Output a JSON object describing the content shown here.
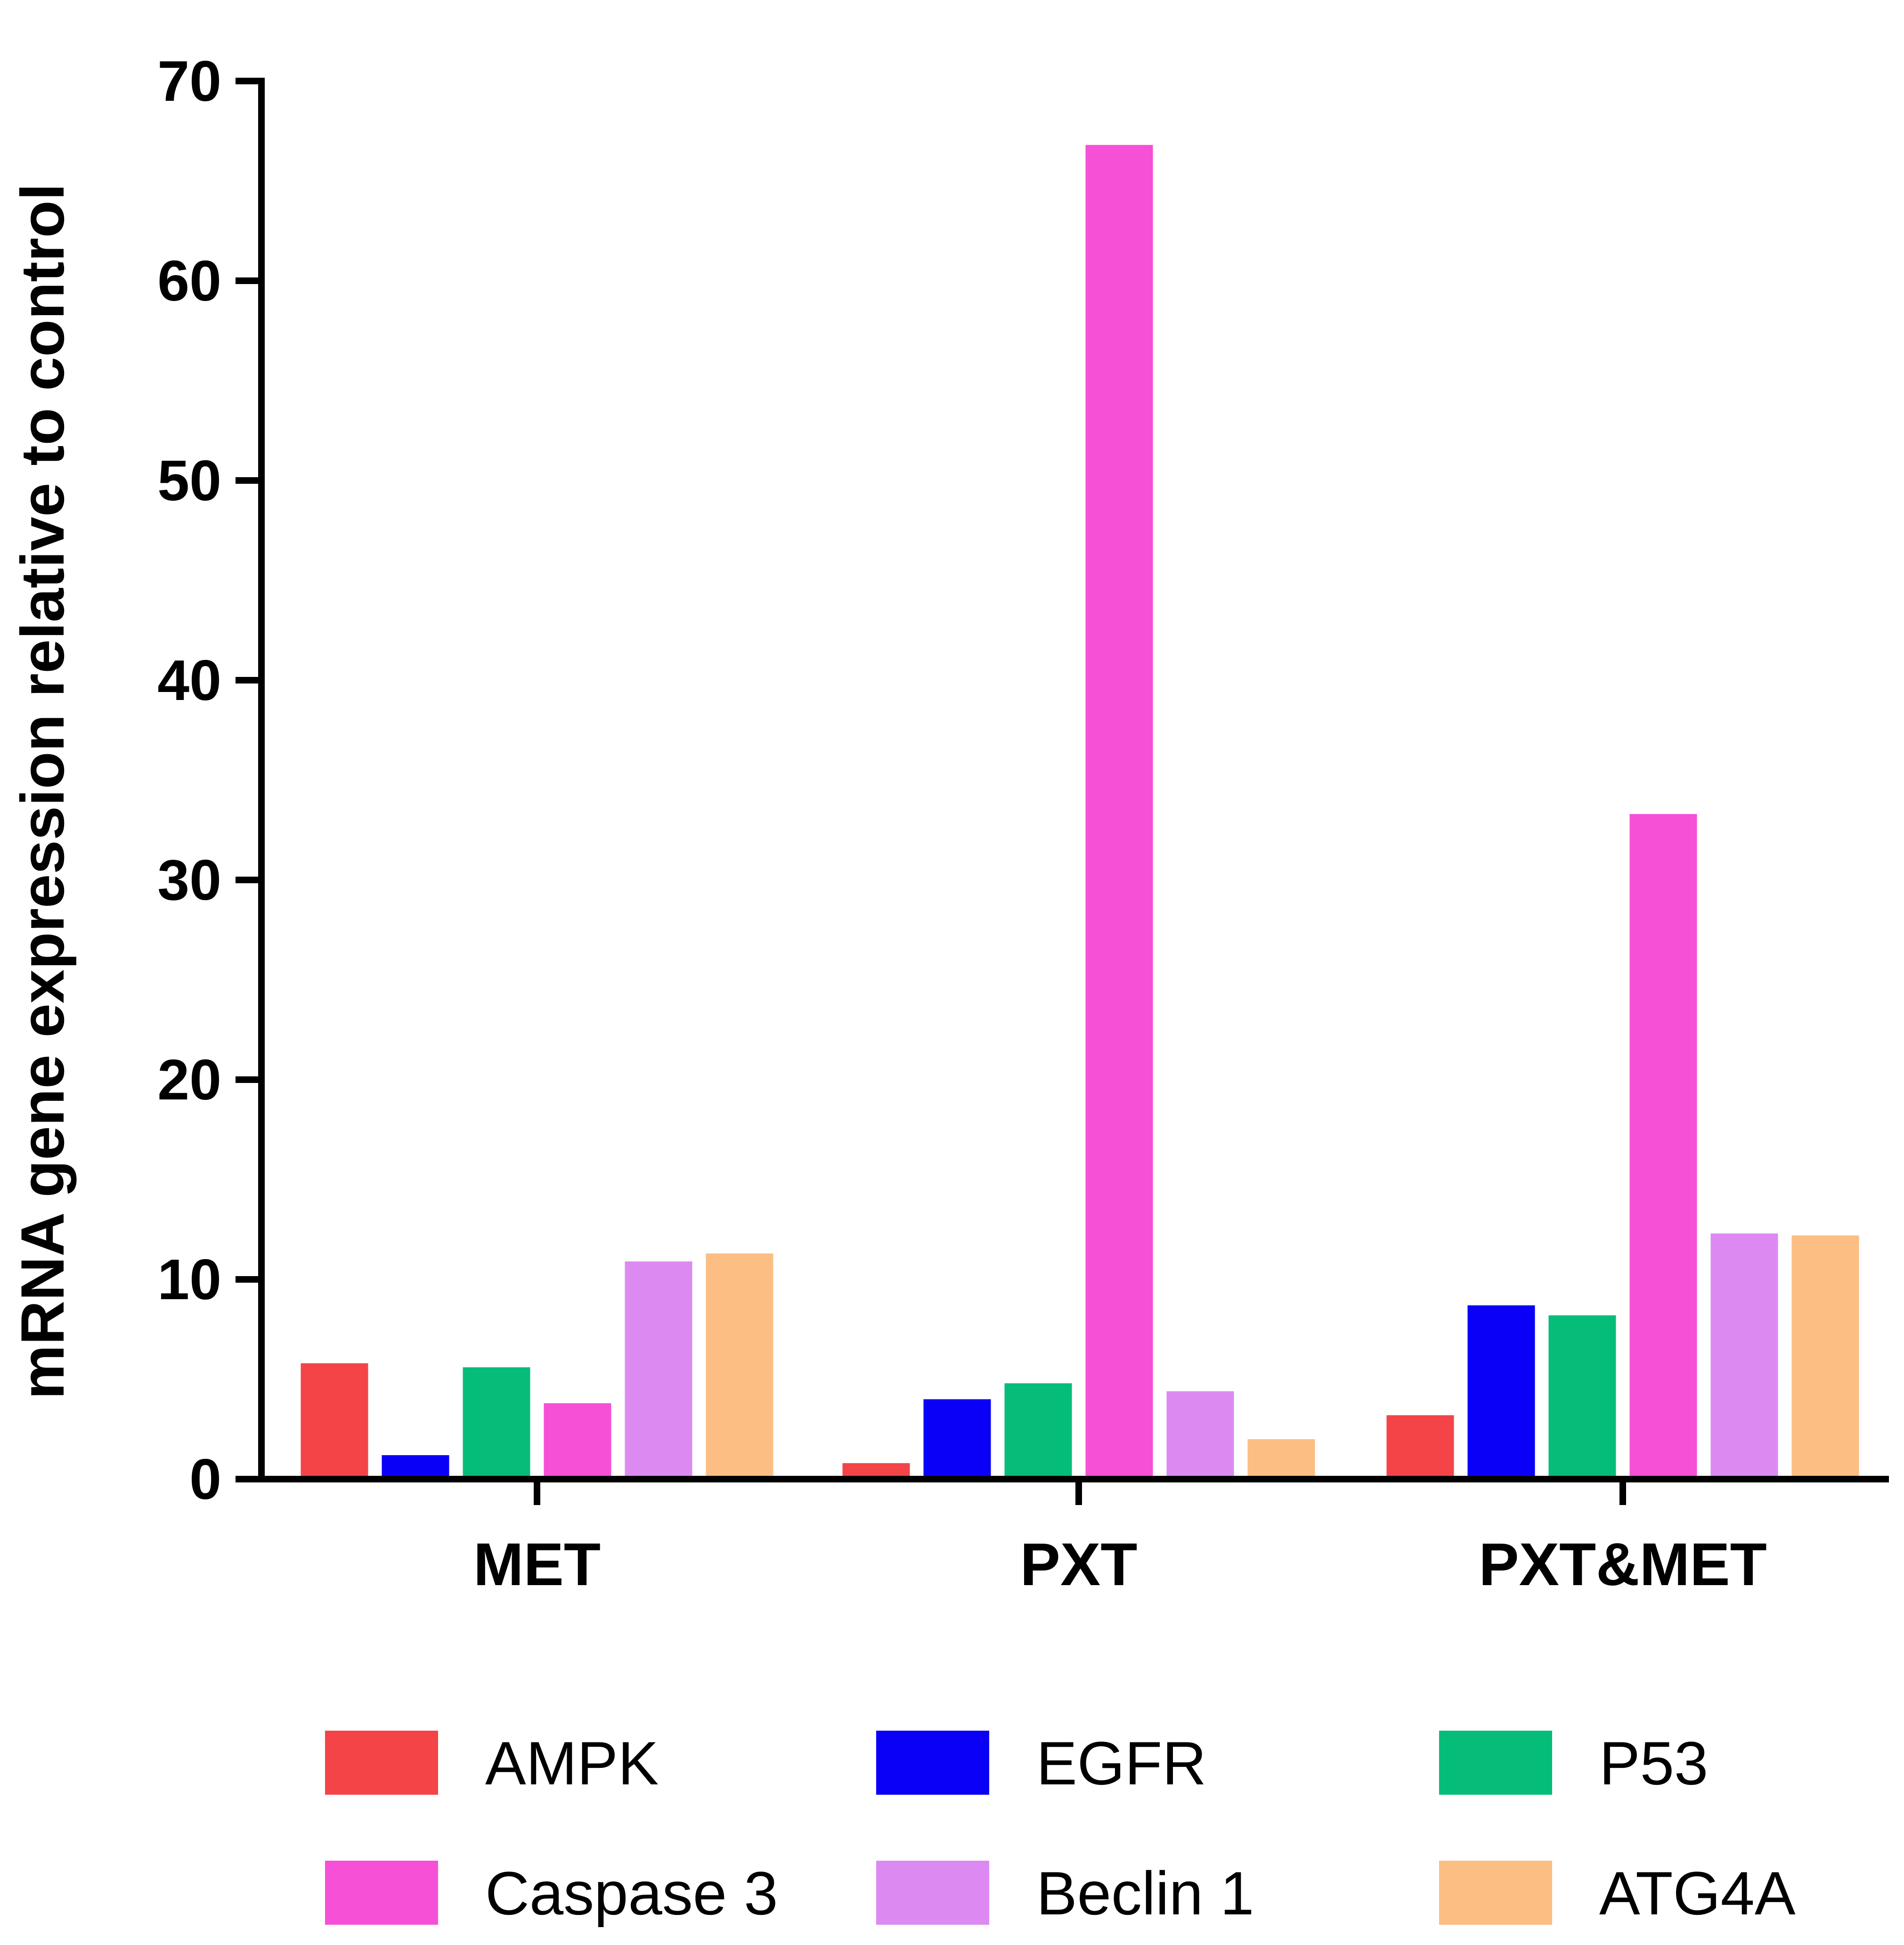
{
  "chart_data": {
    "type": "bar",
    "title": "",
    "xlabel": "",
    "ylabel": "mRNA gene expression relative to control",
    "ylim": [
      0,
      70
    ],
    "yticks": [
      0,
      10,
      20,
      30,
      40,
      50,
      60,
      70
    ],
    "categories": [
      "MET",
      "PXT",
      "PXT&MET"
    ],
    "legend_position": "bottom",
    "series": [
      {
        "name": "AMPK",
        "color": "#f44447",
        "values": [
          5.8,
          0.8,
          3.2
        ]
      },
      {
        "name": "EGFR",
        "color": "#0a00f5",
        "values": [
          1.2,
          4.0,
          8.7
        ]
      },
      {
        "name": "P53",
        "color": "#05bd79",
        "values": [
          5.6,
          4.8,
          8.2
        ]
      },
      {
        "name": "Caspase 3",
        "color": "#f550d6",
        "values": [
          3.8,
          66.8,
          33.3
        ]
      },
      {
        "name": "Beclin 1",
        "color": "#dc8af2",
        "values": [
          10.9,
          4.4,
          12.3
        ]
      },
      {
        "name": "ATG4A",
        "color": "#fcbe83",
        "values": [
          11.3,
          2.0,
          12.2
        ]
      }
    ]
  }
}
